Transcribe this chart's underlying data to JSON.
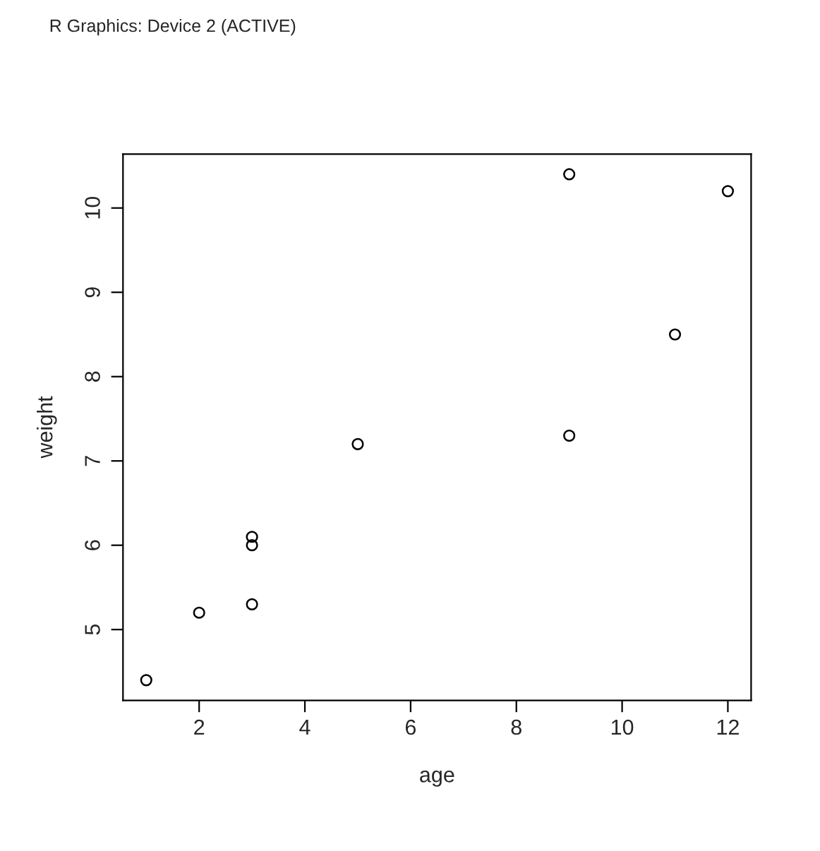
{
  "chart_data": {
    "type": "scatter",
    "xlabel": "age",
    "ylabel": "weight",
    "annotations": [
      "R Graphics: Device 2 (ACTIVE)"
    ],
    "x": [
      1,
      3,
      5,
      2,
      11,
      9,
      3,
      9,
      12,
      3
    ],
    "values": [
      4.4,
      5.3,
      7.2,
      5.2,
      8.5,
      7.3,
      6.0,
      10.4,
      10.2,
      6.1
    ],
    "color": "#000000",
    "marker": "circle",
    "xlim": [
      0.56,
      12.44
    ],
    "ylim": [
      4.16,
      10.64
    ],
    "xticks": [
      2,
      4,
      6,
      8,
      10,
      12
    ],
    "yticks": [
      5,
      6,
      7,
      8,
      9,
      10
    ],
    "grid": false,
    "legend": false
  }
}
